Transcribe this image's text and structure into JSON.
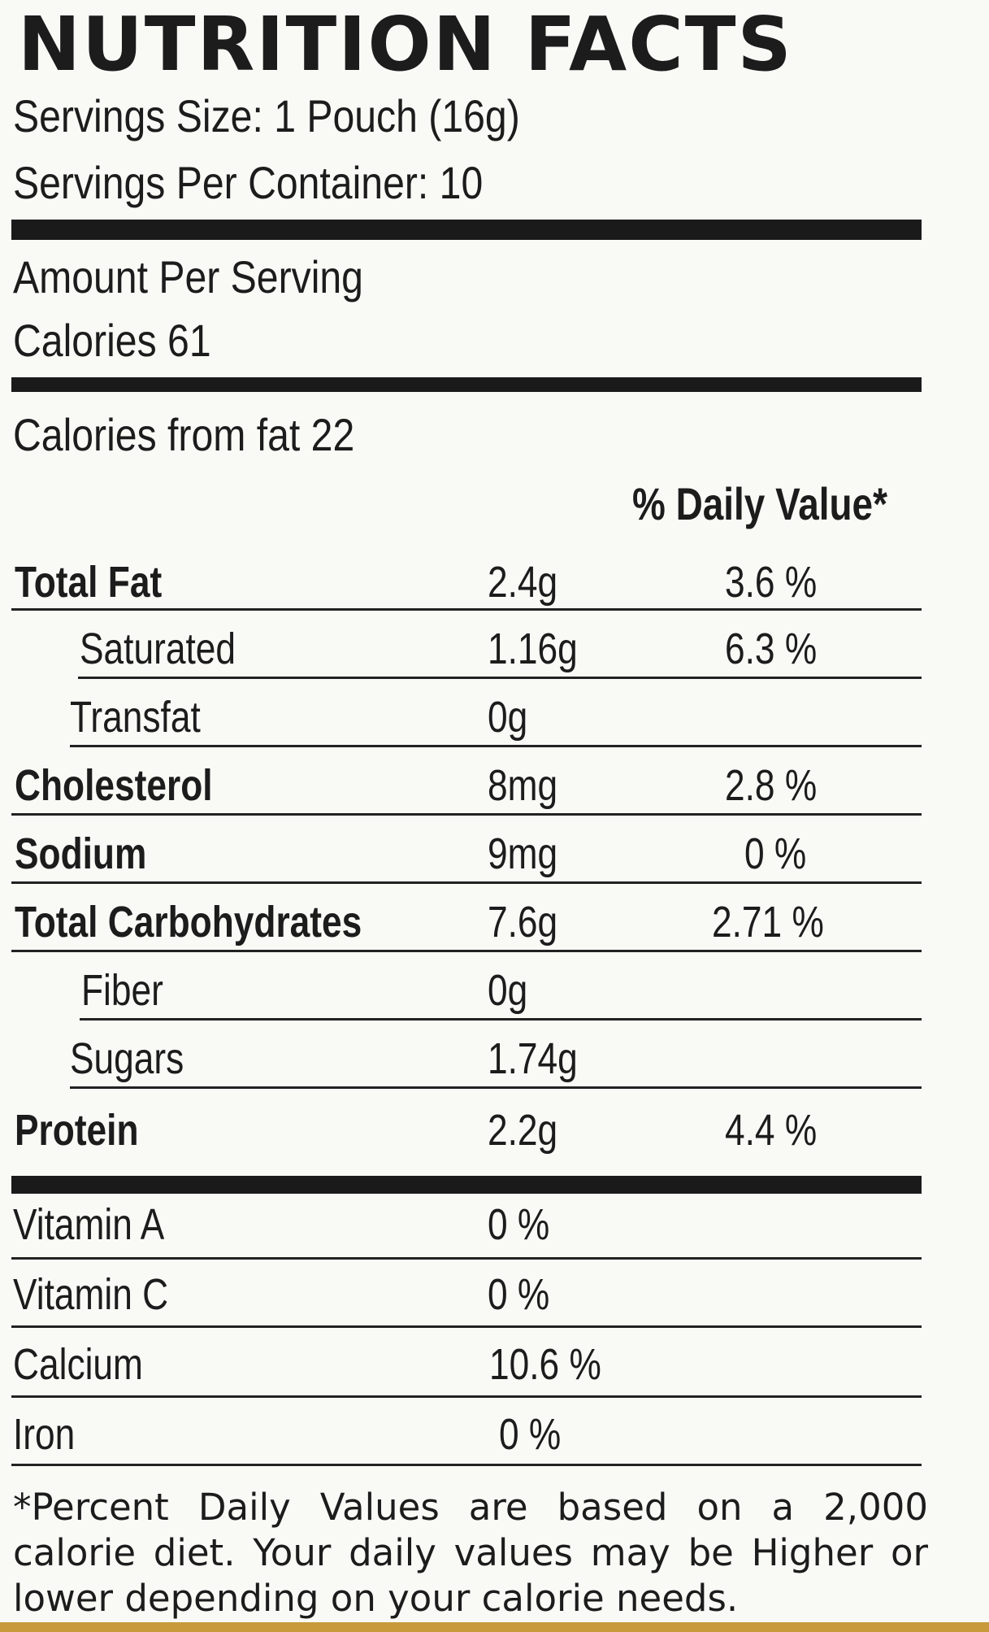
{
  "label": {
    "title": "NUTRITION FACTS",
    "serving_size": "Servings Size: 1 Pouch (16g)",
    "servings_per_container": "Servings Per Container: 10",
    "amount_per_serving": "Amount Per Serving",
    "calories": "Calories  61",
    "calories_from_fat": "Calories from fat 22",
    "daily_value_header": "% Daily Value*",
    "nutrients": [
      {
        "name": "Total Fat",
        "amount": "2.4g",
        "dv": "3.6 %"
      },
      {
        "name": "Saturated",
        "amount": "1.16g",
        "dv": "6.3 %"
      },
      {
        "name": "Transfat",
        "amount": "0g",
        "dv": ""
      },
      {
        "name": "Cholesterol",
        "amount": "8mg",
        "dv": "2.8 %"
      },
      {
        "name": "Sodium",
        "amount": "9mg",
        "dv": "0 %"
      },
      {
        "name": "Total Carbohydrates",
        "amount": "7.6g",
        "dv": "2.71 %"
      },
      {
        "name": "Fiber",
        "amount": "0g",
        "dv": ""
      },
      {
        "name": "Sugars",
        "amount": "1.74g",
        "dv": ""
      },
      {
        "name": "Protein",
        "amount": "2.2g",
        "dv": "4.4 %"
      }
    ],
    "vitamins": [
      {
        "name": "Vitamin A",
        "value": "0 %"
      },
      {
        "name": "Vitamin C",
        "value": "0 %"
      },
      {
        "name": "Calcium",
        "value": "10.6 %"
      },
      {
        "name": "Iron",
        "value": "0 %"
      }
    ],
    "footnote": "*Percent Daily Values are based on a 2,000 calorie diet. Your daily values may be Higher or lower depending on your calorie needs."
  },
  "colors": {
    "ink": "#1c1c1c",
    "background": "#f9f9f6",
    "edge": "#c89a3a"
  }
}
